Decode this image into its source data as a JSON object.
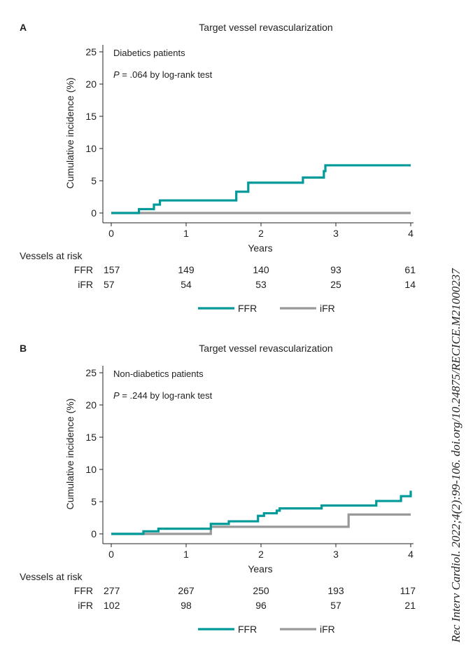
{
  "citation": "Rec Interv Cardiol. 2022;4(2):99-106. doi.org/10.24875/RECICE.M21000237",
  "colors": {
    "FFR": "#009a9a",
    "iFR": "#999999"
  },
  "chart_data": [
    {
      "panel": "A",
      "type": "line",
      "step": true,
      "title": "Target vessel revascularization",
      "subgroup": "Diabetics patients",
      "p_text_prefix": "P",
      "p_text": " = .064 by log-rank test",
      "xlabel": "Years",
      "ylabel": "Cumulative incidence (%)",
      "xlim": [
        0,
        4
      ],
      "ylim": [
        0,
        25
      ],
      "xticks": [
        0,
        1,
        2,
        3,
        4
      ],
      "yticks": [
        0,
        5,
        10,
        15,
        20,
        25
      ],
      "legend": "bottom",
      "series": [
        {
          "name": "FFR",
          "x": [
            0,
            0.37,
            0.57,
            0.65,
            1.67,
            1.83,
            2.56,
            2.84,
            2.86,
            4
          ],
          "y": [
            0,
            0.6,
            1.3,
            1.95,
            3.3,
            4.7,
            5.5,
            6.5,
            7.4,
            7.4
          ]
        },
        {
          "name": "iFR",
          "x": [
            0,
            4
          ],
          "y": [
            0,
            0
          ]
        }
      ],
      "risk_table": {
        "title": "Vessels at risk",
        "rows": [
          {
            "label": "FFR",
            "values": [
              "157",
              "149",
              "140",
              "93",
              "61"
            ]
          },
          {
            "label": "iFR",
            "values": [
              "57",
              "54",
              "53",
              "25",
              "14"
            ]
          }
        ]
      }
    },
    {
      "panel": "B",
      "type": "line",
      "step": true,
      "title": "Target vessel revascularization",
      "subgroup": "Non-diabetics patients",
      "p_text_prefix": "P",
      "p_text": " = .244 by log-rank test",
      "xlabel": "Years",
      "ylabel": "Cumulative incidence (%)",
      "xlim": [
        0,
        4
      ],
      "ylim": [
        0,
        25
      ],
      "xticks": [
        0,
        1,
        2,
        3,
        4
      ],
      "yticks": [
        0,
        5,
        10,
        15,
        20,
        25
      ],
      "legend": "bottom",
      "series": [
        {
          "name": "FFR",
          "x": [
            0,
            0.43,
            0.63,
            1.33,
            1.57,
            1.96,
            2.04,
            2.21,
            2.25,
            2.81,
            3.54,
            3.87,
            4.0,
            4.0
          ],
          "y": [
            0,
            0.4,
            0.8,
            1.55,
            1.95,
            2.8,
            3.2,
            3.6,
            3.95,
            4.4,
            5.1,
            5.85,
            5.85,
            6.7
          ]
        },
        {
          "name": "iFR",
          "x": [
            0,
            1.33,
            3.17,
            4
          ],
          "y": [
            0,
            1.1,
            3.0,
            3.0
          ]
        }
      ],
      "risk_table": {
        "title": "Vessels at risk",
        "rows": [
          {
            "label": "FFR",
            "values": [
              "277",
              "267",
              "250",
              "193",
              "117"
            ]
          },
          {
            "label": "iFR",
            "values": [
              "102",
              "98",
              "96",
              "57",
              "21"
            ]
          }
        ]
      }
    }
  ]
}
